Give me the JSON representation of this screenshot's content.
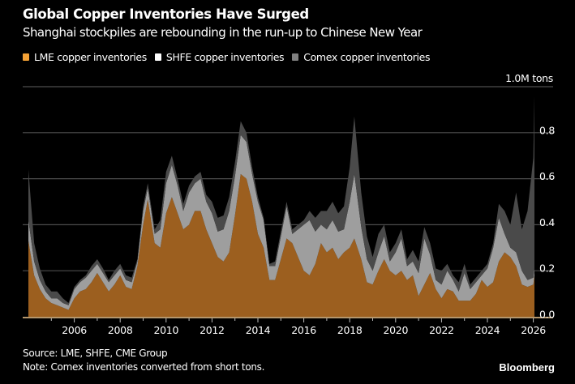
{
  "header": {
    "title": "Global Copper Inventories Have Surged",
    "subtitle": "Shanghai stockpiles are rebounding in the run-up to Chinese New Year"
  },
  "legend": [
    {
      "label": "LME copper inventories",
      "color": "#f5a236"
    },
    {
      "label": "SHFE copper inventories",
      "color": "#ffffff"
    },
    {
      "label": "Comex copper inventories",
      "color": "#808080"
    }
  ],
  "footer": {
    "source": "Source: LME, SHFE, CME Group",
    "note": "Note: Comex inventories converted from short tons.",
    "brand": "Bloomberg"
  },
  "chart_data": {
    "type": "area",
    "stacked": true,
    "title": "Global Copper Inventories Have Surged",
    "subtitle": "Shanghai stockpiles are rebounding in the run-up to Chinese New Year",
    "xlabel": "",
    "ylabel": "1.0M tons",
    "units": "million tons",
    "ylim": [
      0,
      1.0
    ],
    "xlim": [
      2004.0,
      2026.1
    ],
    "y_ticks": [
      0.0,
      0.2,
      0.4,
      0.6,
      0.8,
      1.0
    ],
    "y_tick_labels": [
      "0.0",
      "0.2",
      "0.4",
      "0.6",
      "0.8",
      "1.0M tons"
    ],
    "x_ticks": [
      2006,
      2008,
      2010,
      2012,
      2014,
      2016,
      2018,
      2020,
      2022,
      2024,
      2026
    ],
    "x_tick_labels": [
      "2006",
      "2008",
      "2010",
      "2012",
      "2014",
      "2016",
      "2018",
      "2020",
      "2022",
      "2024",
      "2026"
    ],
    "grid": true,
    "legend_position": "top-left",
    "series_colors": {
      "LME": "#9c5f1f",
      "SHFE": "#9e9e9e",
      "Comex": "#4a4a4a"
    },
    "x": [
      2004.0,
      2004.25,
      2004.5,
      2004.75,
      2005.0,
      2005.25,
      2005.5,
      2005.75,
      2006.0,
      2006.25,
      2006.5,
      2006.75,
      2007.0,
      2007.25,
      2007.5,
      2007.75,
      2008.0,
      2008.25,
      2008.5,
      2008.75,
      2009.0,
      2009.2,
      2009.5,
      2009.75,
      2010.0,
      2010.25,
      2010.5,
      2010.75,
      2011.0,
      2011.25,
      2011.5,
      2011.75,
      2012.0,
      2012.25,
      2012.5,
      2012.75,
      2013.0,
      2013.25,
      2013.5,
      2013.75,
      2014.0,
      2014.25,
      2014.5,
      2014.75,
      2015.0,
      2015.25,
      2015.5,
      2015.75,
      2016.0,
      2016.25,
      2016.5,
      2016.75,
      2017.0,
      2017.25,
      2017.5,
      2017.75,
      2018.0,
      2018.2,
      2018.5,
      2018.75,
      2019.0,
      2019.25,
      2019.5,
      2019.75,
      2020.0,
      2020.25,
      2020.5,
      2020.75,
      2021.0,
      2021.25,
      2021.5,
      2021.75,
      2022.0,
      2022.25,
      2022.5,
      2022.75,
      2023.0,
      2023.25,
      2023.5,
      2023.75,
      2024.0,
      2024.25,
      2024.5,
      2024.75,
      2025.0,
      2025.25,
      2025.5,
      2025.75,
      2026.0,
      2026.05
    ],
    "series": [
      {
        "name": "LME copper inventories",
        "values": [
          0.33,
          0.18,
          0.12,
          0.08,
          0.06,
          0.05,
          0.04,
          0.03,
          0.08,
          0.11,
          0.12,
          0.15,
          0.19,
          0.15,
          0.11,
          0.14,
          0.18,
          0.13,
          0.12,
          0.22,
          0.4,
          0.51,
          0.32,
          0.3,
          0.45,
          0.52,
          0.45,
          0.38,
          0.4,
          0.46,
          0.46,
          0.38,
          0.32,
          0.26,
          0.24,
          0.28,
          0.44,
          0.62,
          0.6,
          0.5,
          0.36,
          0.3,
          0.16,
          0.16,
          0.25,
          0.34,
          0.32,
          0.26,
          0.2,
          0.18,
          0.23,
          0.32,
          0.28,
          0.3,
          0.25,
          0.28,
          0.3,
          0.34,
          0.25,
          0.15,
          0.14,
          0.2,
          0.25,
          0.2,
          0.18,
          0.2,
          0.16,
          0.18,
          0.09,
          0.14,
          0.19,
          0.12,
          0.08,
          0.12,
          0.11,
          0.07,
          0.07,
          0.07,
          0.1,
          0.16,
          0.13,
          0.15,
          0.24,
          0.28,
          0.26,
          0.22,
          0.14,
          0.13,
          0.14,
          0.18
        ]
      },
      {
        "name": "SHFE copper inventories",
        "values": [
          0.09,
          0.06,
          0.04,
          0.03,
          0.02,
          0.03,
          0.02,
          0.02,
          0.04,
          0.04,
          0.05,
          0.05,
          0.04,
          0.04,
          0.04,
          0.04,
          0.03,
          0.03,
          0.03,
          0.02,
          0.06,
          0.05,
          0.04,
          0.08,
          0.13,
          0.14,
          0.12,
          0.08,
          0.14,
          0.12,
          0.14,
          0.12,
          0.13,
          0.11,
          0.14,
          0.18,
          0.17,
          0.17,
          0.16,
          0.12,
          0.14,
          0.12,
          0.06,
          0.06,
          0.1,
          0.14,
          0.04,
          0.12,
          0.2,
          0.24,
          0.14,
          0.08,
          0.1,
          0.12,
          0.12,
          0.1,
          0.2,
          0.28,
          0.14,
          0.1,
          0.06,
          0.08,
          0.1,
          0.04,
          0.1,
          0.14,
          0.06,
          0.06,
          0.1,
          0.2,
          0.08,
          0.04,
          0.06,
          0.08,
          0.05,
          0.04,
          0.12,
          0.05,
          0.05,
          0.02,
          0.08,
          0.15,
          0.19,
          0.08,
          0.04,
          0.06,
          0.06,
          0.03,
          0.03,
          0.03
        ]
      },
      {
        "name": "Comex copper inventories",
        "values": [
          0.22,
          0.08,
          0.05,
          0.03,
          0.03,
          0.03,
          0.02,
          0.01,
          0.01,
          0.01,
          0.01,
          0.02,
          0.02,
          0.02,
          0.01,
          0.02,
          0.02,
          0.02,
          0.02,
          0.01,
          0.02,
          0.02,
          0.02,
          0.04,
          0.05,
          0.04,
          0.03,
          0.03,
          0.03,
          0.03,
          0.03,
          0.03,
          0.05,
          0.06,
          0.06,
          0.06,
          0.06,
          0.06,
          0.04,
          0.03,
          0.02,
          0.01,
          0.01,
          0.02,
          0.02,
          0.02,
          0.02,
          0.02,
          0.02,
          0.04,
          0.06,
          0.06,
          0.08,
          0.08,
          0.08,
          0.1,
          0.15,
          0.25,
          0.15,
          0.1,
          0.06,
          0.08,
          0.05,
          0.04,
          0.04,
          0.04,
          0.03,
          0.05,
          0.05,
          0.05,
          0.05,
          0.05,
          0.06,
          0.03,
          0.02,
          0.04,
          0.04,
          0.02,
          0.02,
          0.02,
          0.02,
          0.02,
          0.06,
          0.1,
          0.1,
          0.26,
          0.18,
          0.3,
          0.52,
          0.75
        ]
      }
    ]
  }
}
